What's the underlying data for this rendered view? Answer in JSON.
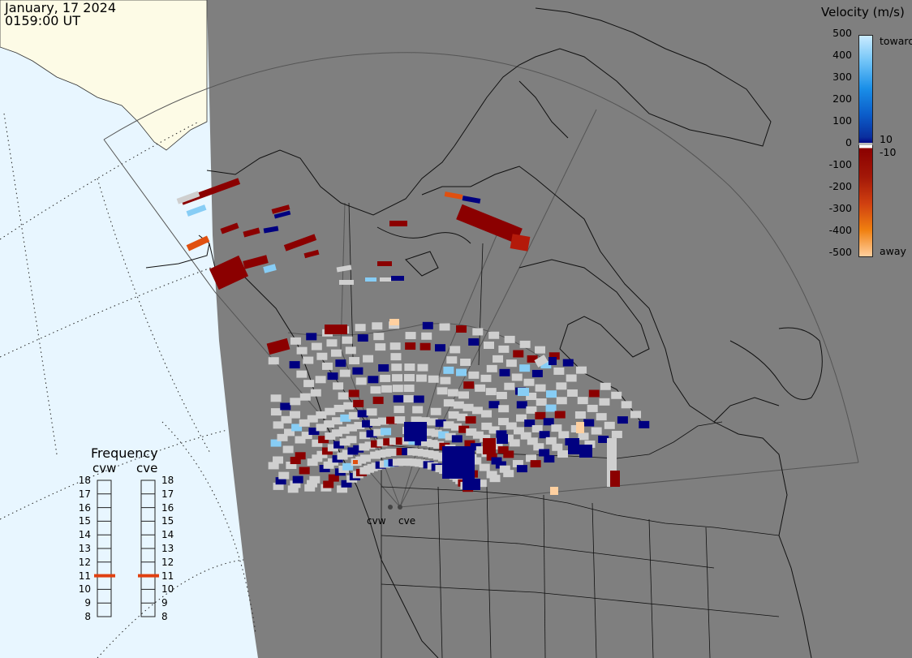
{
  "header": {
    "date": "January, 17 2024",
    "time": "0159:00 UT"
  },
  "velocity_scale": {
    "title": "Velocity (m/s)",
    "ticks": [
      "500",
      "400",
      "300",
      "200",
      "100",
      "0",
      "-100",
      "-200",
      "-300",
      "-400",
      "-500"
    ],
    "inner_ticks": [
      "10",
      "-10"
    ],
    "toward_label": "toward",
    "away_label": "away",
    "colors_top_to_bottom": [
      "#ccecff",
      "#4fb6f4",
      "#1a8fe8",
      "#0b5cc9",
      "#0a2f9e",
      "#000080",
      "#ffffff",
      "#8b0000",
      "#a31808",
      "#d04010",
      "#f08010",
      "#ffd0a0"
    ]
  },
  "frequency_panel": {
    "title": "Frequency",
    "radars": [
      {
        "name": "cvw",
        "frequency_mhz": 11,
        "indicator_color": "#e04010"
      },
      {
        "name": "cve",
        "frequency_mhz": 11,
        "indicator_color": "#e04010"
      }
    ],
    "scale": [
      "18",
      "17",
      "16",
      "15",
      "14",
      "13",
      "12",
      "11",
      "10",
      "9",
      "8"
    ]
  },
  "radar_sites": [
    {
      "name": "cvw"
    },
    {
      "name": "cve"
    }
  ],
  "map_colors": {
    "ocean_night": "#7f7f7f",
    "ocean_day": "#e8f6ff",
    "land_day": "#fdfbe6",
    "no_echo_ground_scatter": "#cfcfcf"
  }
}
